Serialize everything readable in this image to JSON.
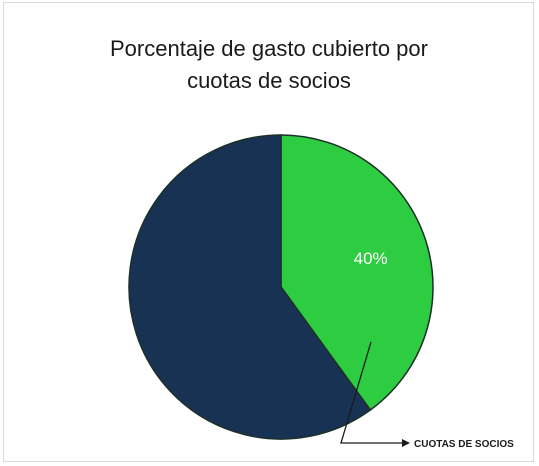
{
  "chart_data": {
    "type": "pie",
    "title": "Porcentaje de gasto cubierto por\ncuotas de socios",
    "slices": [
      {
        "label": "CUOTAS DE SOCIOS",
        "value": 40,
        "data_label": "40%",
        "color": "#2ecc40"
      },
      {
        "label": "",
        "value": 60,
        "data_label": "",
        "color": "#183254"
      }
    ],
    "callout": "CUOTAS DE SOCIOS",
    "legend": "none"
  }
}
